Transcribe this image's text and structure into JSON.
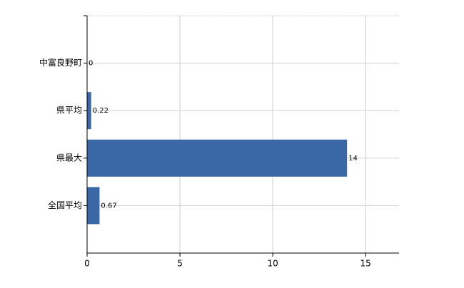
{
  "chart_data": {
    "type": "bar",
    "orientation": "horizontal",
    "categories": [
      "中富良野町",
      "県平均",
      "県最大",
      "全国平均"
    ],
    "values": [
      0,
      0.22,
      14,
      0.67
    ],
    "color": "#3a67a6",
    "xlim": [
      0,
      16.8
    ],
    "xticks": [
      0,
      5,
      10,
      15
    ],
    "grid": true
  }
}
